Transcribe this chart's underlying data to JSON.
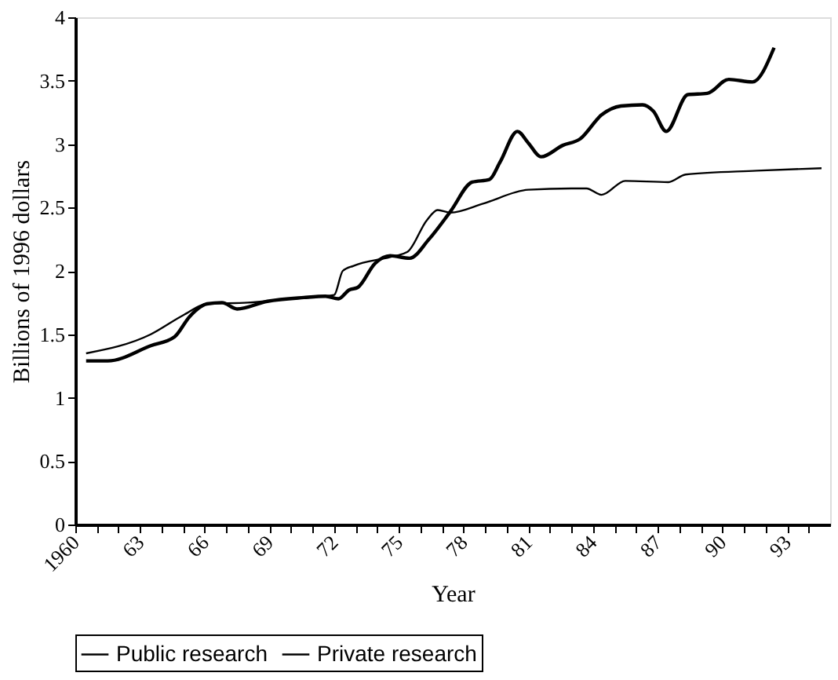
{
  "chart_data": {
    "type": "line",
    "xlabel": "Year",
    "ylabel": "Billions of 1996 dollars",
    "xlim": [
      1960,
      1995
    ],
    "ylim": [
      0,
      4
    ],
    "xticks": [
      1960,
      {
        "value": 1961,
        "label": null
      },
      {
        "value": 1962,
        "label": null
      },
      {
        "value": 1963,
        "label": "63"
      },
      {
        "value": 1964,
        "label": null
      },
      {
        "value": 1965,
        "label": null
      },
      {
        "value": 1966,
        "label": "66"
      },
      {
        "value": 1967,
        "label": null
      },
      {
        "value": 1968,
        "label": null
      },
      {
        "value": 1969,
        "label": "69"
      },
      {
        "value": 1970,
        "label": null
      },
      {
        "value": 1971,
        "label": null
      },
      {
        "value": 1972,
        "label": "72"
      },
      {
        "value": 1973,
        "label": null
      },
      {
        "value": 1974,
        "label": null
      },
      {
        "value": 1975,
        "label": "75"
      },
      {
        "value": 1976,
        "label": null
      },
      {
        "value": 1977,
        "label": null
      },
      {
        "value": 1978,
        "label": "78"
      },
      {
        "value": 1979,
        "label": null
      },
      {
        "value": 1980,
        "label": null
      },
      {
        "value": 1981,
        "label": "81"
      },
      {
        "value": 1982,
        "label": null
      },
      {
        "value": 1983,
        "label": null
      },
      {
        "value": 1984,
        "label": "84"
      },
      {
        "value": 1985,
        "label": null
      },
      {
        "value": 1986,
        "label": null
      },
      {
        "value": 1987,
        "label": "87"
      },
      {
        "value": 1988,
        "label": null
      },
      {
        "value": 1989,
        "label": null
      },
      {
        "value": 1990,
        "label": "90"
      },
      {
        "value": 1991,
        "label": null
      },
      {
        "value": 1992,
        "label": null
      },
      {
        "value": 1993,
        "label": "93"
      },
      {
        "value": 1994,
        "label": null
      }
    ],
    "yticks": [
      0,
      0.5,
      1,
      1.5,
      2,
      2.5,
      3,
      3.5,
      4
    ],
    "grid": false,
    "legend": "bottom",
    "line_style": "solid",
    "marker": "none",
    "series": [
      {
        "name": "Public research",
        "color": "#000000",
        "x": [
          1960.5,
          1963.5,
          1965,
          1966.1,
          1968,
          1970,
          1972,
          1972.4,
          1972.9,
          1974.6,
          1975.4,
          1976.3,
          1976.8,
          1977.4,
          1978.9,
          1981,
          1983,
          1983.7,
          1984.4,
          1985.5,
          1987.5,
          1988.3,
          1991.6,
          1994.6
        ],
        "values": [
          1.35,
          1.5,
          1.65,
          1.74,
          1.75,
          1.78,
          1.81,
          2.0,
          2.04,
          2.11,
          2.15,
          2.4,
          2.48,
          2.46,
          2.53,
          2.64,
          2.65,
          2.65,
          2.6,
          2.71,
          2.7,
          2.76,
          2.79,
          2.81
        ]
      },
      {
        "name": "Private research",
        "color": "#000000",
        "x": [
          1960.5,
          1961.5,
          1963.5,
          1964.6,
          1965.3,
          1966.1,
          1966.8,
          1967.5,
          1968.9,
          1970.6,
          1971.6,
          1972.2,
          1972.7,
          1973.1,
          1973.9,
          1974.6,
          1975.5,
          1976.4,
          1977.4,
          1978.4,
          1979.2,
          1979.7,
          1980.5,
          1981,
          1981.6,
          1982.6,
          1983.4,
          1984.4,
          1985.3,
          1986.3,
          1986.8,
          1987.4,
          1988.4,
          1989.3,
          1990.3,
          1991.4,
          1992.4
        ],
        "values": [
          1.29,
          1.29,
          1.41,
          1.48,
          1.64,
          1.74,
          1.75,
          1.7,
          1.76,
          1.79,
          1.8,
          1.78,
          1.85,
          1.87,
          2.06,
          2.12,
          2.1,
          2.25,
          2.47,
          2.7,
          2.72,
          2.86,
          3.1,
          3.01,
          2.9,
          2.99,
          3.04,
          3.23,
          3.3,
          3.31,
          3.26,
          3.1,
          3.39,
          3.4,
          3.51,
          3.49,
          3.76
        ]
      }
    ]
  }
}
